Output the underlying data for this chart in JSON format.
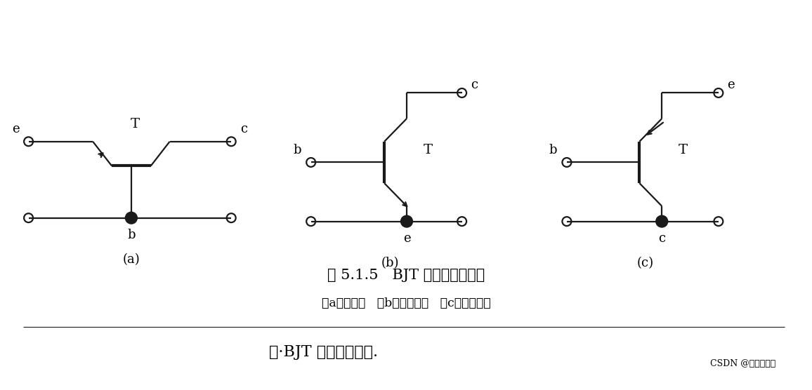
{
  "bg_color": "#ffffff",
  "line_color": "#1a1a1a",
  "title1": "图 5.1.5   BJT 的三种连接方式",
  "title2": "（a）共基极   （b）共发射极   （c）共集电极",
  "title3": "图·BJT 三种连接关系.",
  "watermark": "CSDN @江安吴彦祖",
  "sub_titles": [
    "(a)",
    "(b)",
    "(c)"
  ]
}
